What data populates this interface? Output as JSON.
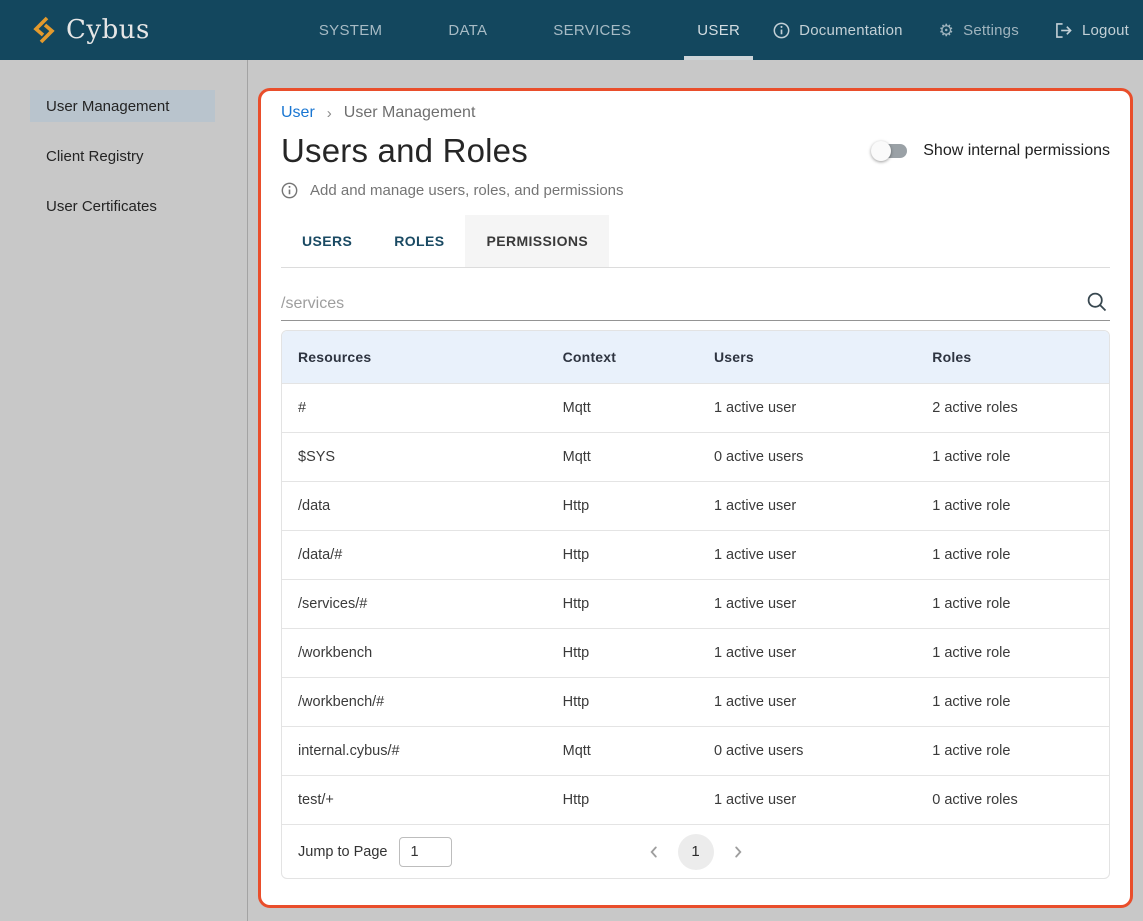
{
  "navbar": {
    "brand": "Cybus",
    "items": [
      {
        "label": "SYSTEM"
      },
      {
        "label": "DATA"
      },
      {
        "label": "SERVICES"
      },
      {
        "label": "USER",
        "active": true
      }
    ],
    "actions": {
      "documentation": "Documentation",
      "settings": "Settings",
      "logout": "Logout"
    }
  },
  "sidebar": {
    "items": [
      {
        "label": "User Management",
        "active": true
      },
      {
        "label": "Client Registry"
      },
      {
        "label": "User Certificates"
      }
    ]
  },
  "breadcrumb": {
    "link": "User",
    "separator": "›",
    "current": "User Management"
  },
  "page": {
    "title": "Users and Roles",
    "subtitle": "Add and manage users, roles, and permissions",
    "toggle_label": "Show internal permissions",
    "toggle_state": "off"
  },
  "tabs": [
    {
      "label": "USERS"
    },
    {
      "label": "ROLES"
    },
    {
      "label": "PERMISSIONS",
      "active": true
    }
  ],
  "search": {
    "placeholder": "/services"
  },
  "table": {
    "columns": [
      "Resources",
      "Context",
      "Users",
      "Roles"
    ],
    "rows": [
      [
        "#",
        "Mqtt",
        "1 active user",
        "2 active roles"
      ],
      [
        "$SYS",
        "Mqtt",
        "0 active users",
        "1 active role"
      ],
      [
        "/data",
        "Http",
        "1 active user",
        "1 active role"
      ],
      [
        "/data/#",
        "Http",
        "1 active user",
        "1 active role"
      ],
      [
        "/services/#",
        "Http",
        "1 active user",
        "1 active role"
      ],
      [
        "/workbench",
        "Http",
        "1 active user",
        "1 active role"
      ],
      [
        "/workbench/#",
        "Http",
        "1 active user",
        "1 active role"
      ],
      [
        "internal.cybus/#",
        "Mqtt",
        "0 active users",
        "1 active role"
      ],
      [
        "test/+",
        "Http",
        "1 active user",
        "0 active roles"
      ]
    ]
  },
  "pagination": {
    "jump_label": "Jump to Page",
    "jump_value": "1",
    "current_page": "1"
  },
  "colors": {
    "navbar_bg": "#13475e",
    "accent_border": "#e94e2b",
    "brand_orange": "#e39a2d",
    "link_blue": "#1976d2",
    "table_header_bg": "#e9f1fb",
    "sidebar_selected_bg": "#b9c4cd"
  }
}
